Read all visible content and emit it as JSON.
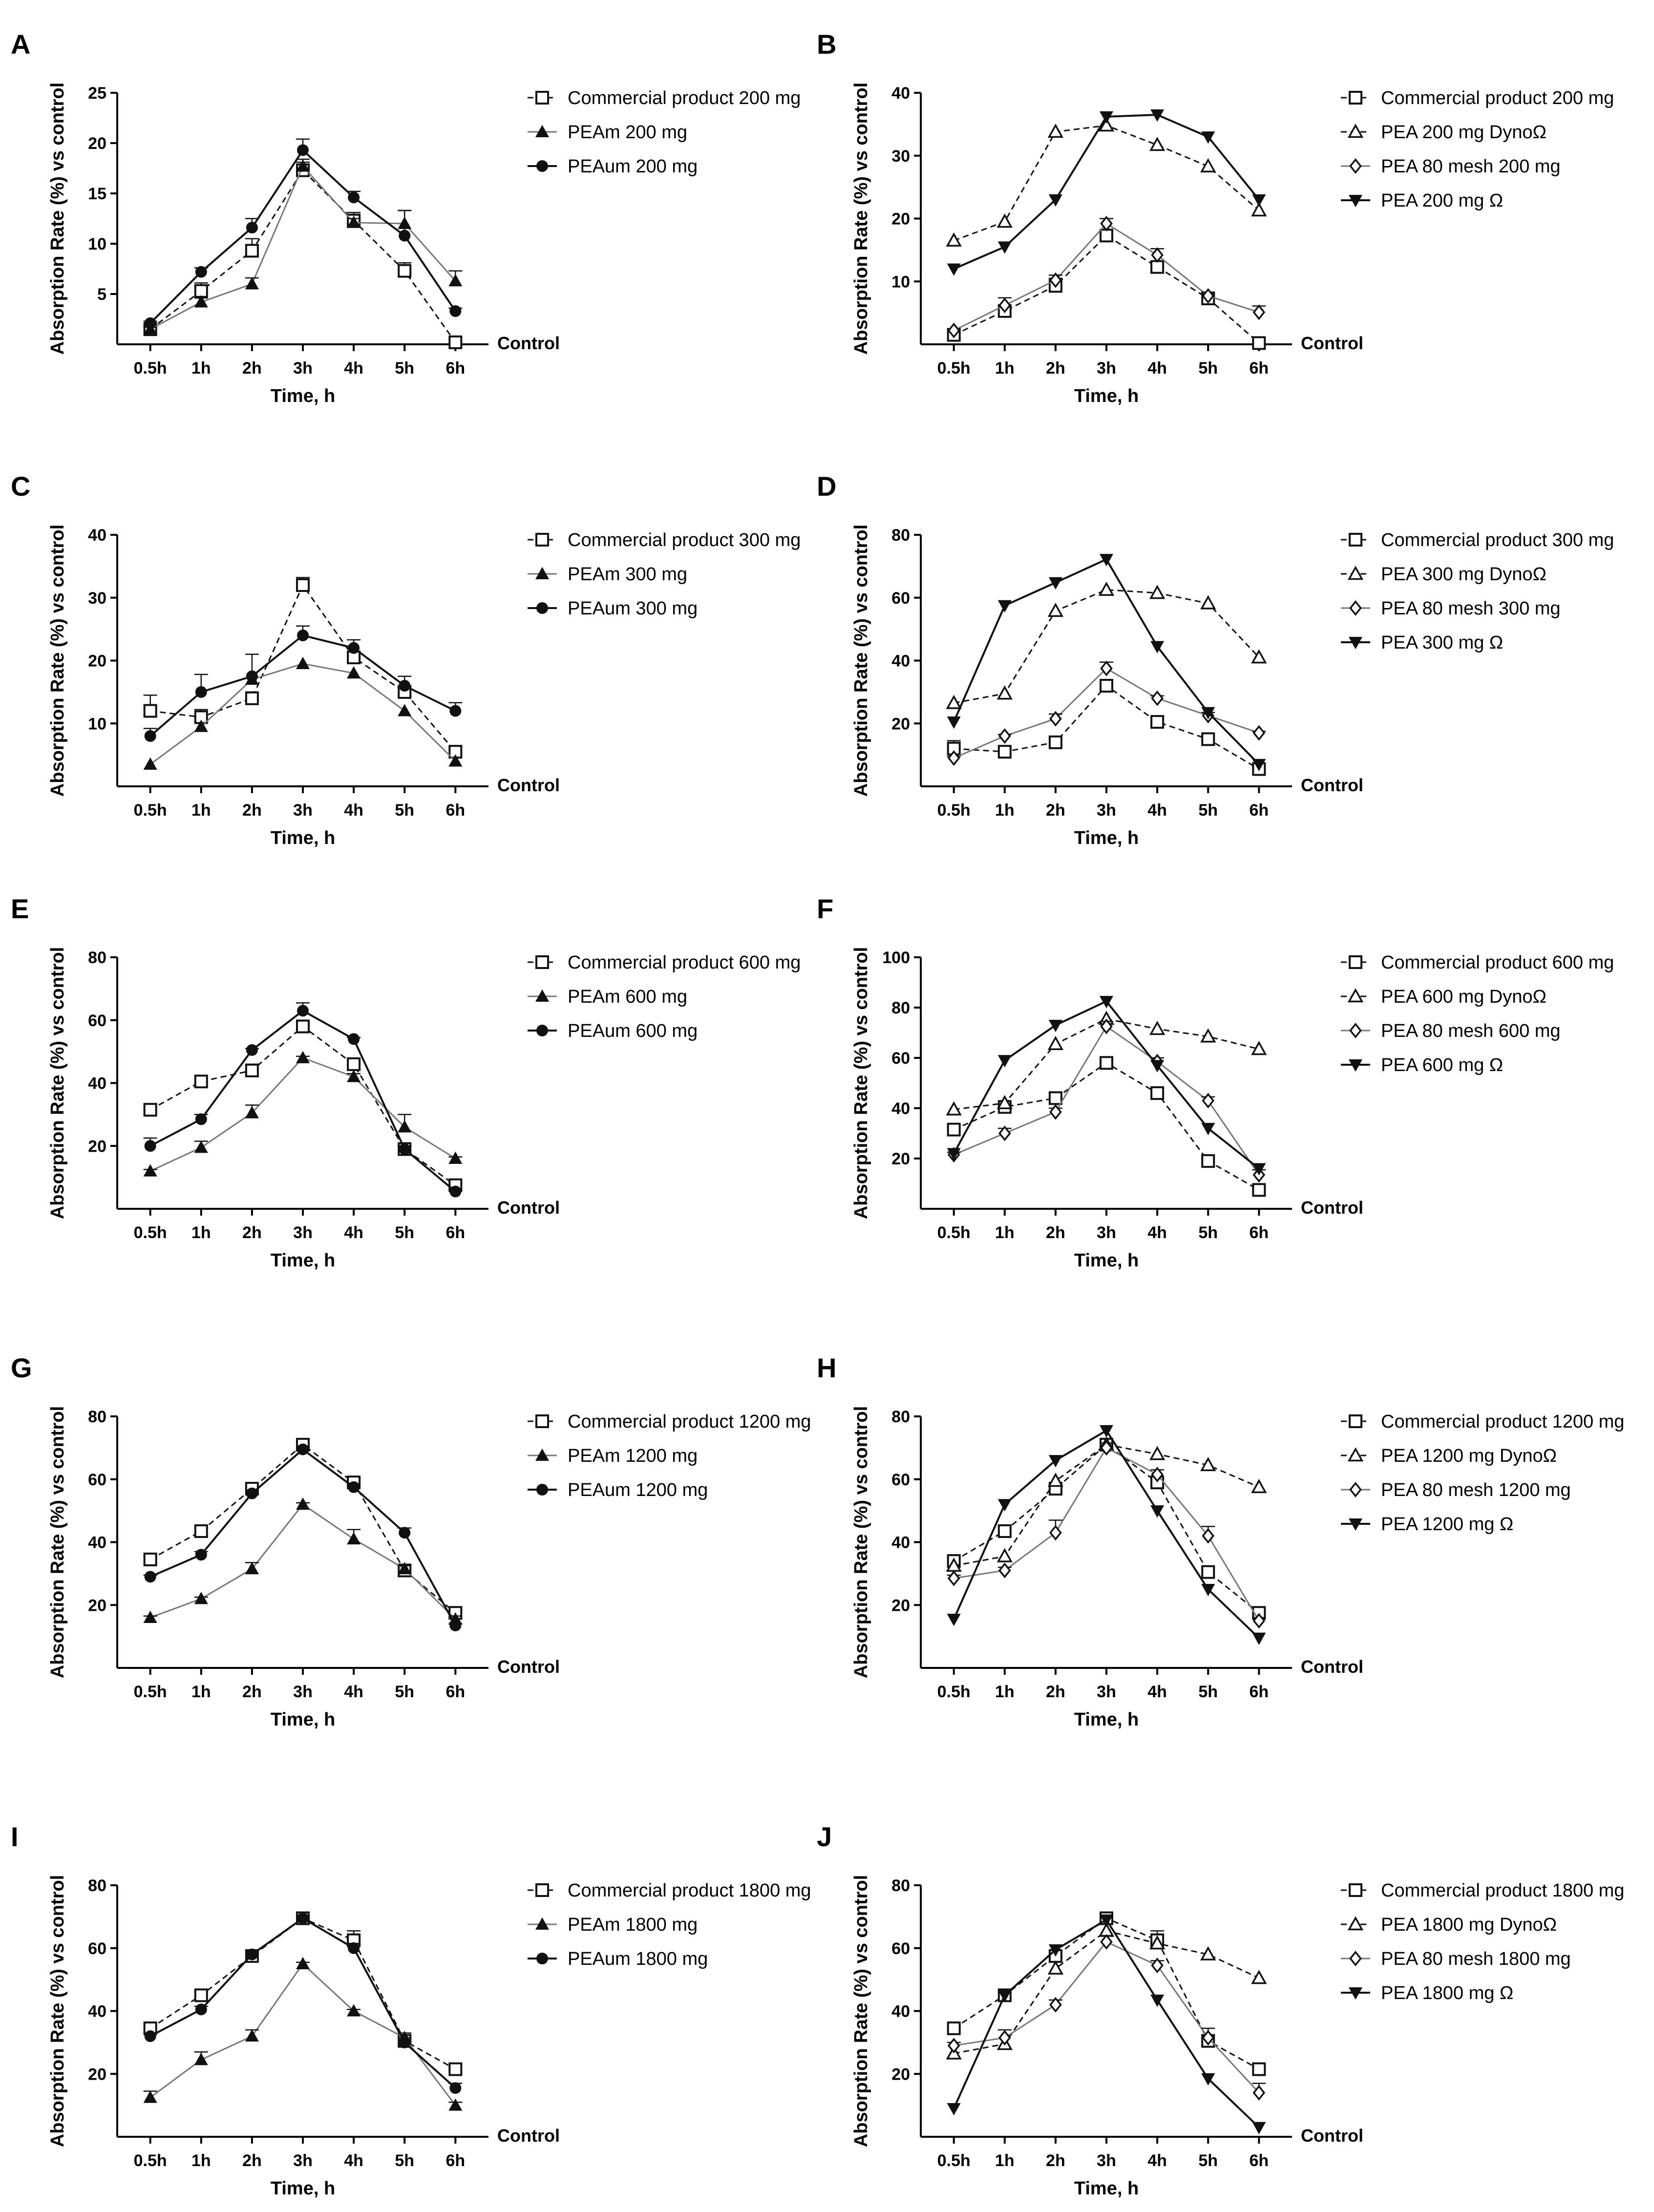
{
  "figure": {
    "control_label": "Control",
    "colors": {
      "axis": "#000000",
      "dark_line": "#111111",
      "gray_line": "#777777",
      "marker_fill": "#ffffff"
    }
  },
  "chart_data": [
    {
      "panel": "A",
      "type": "line",
      "categories": [
        "0.5h",
        "1h",
        "2h",
        "3h",
        "4h",
        "5h",
        "6h"
      ],
      "xlabel": "Time, h",
      "ylabel": "Absorption Rate (%) vs control",
      "ylim": [
        0,
        25
      ],
      "yticks": [
        5,
        10,
        15,
        20,
        25
      ],
      "series": [
        {
          "name": "Commercial product 200 mg",
          "marker": "square-open",
          "line": "dashed-dark",
          "values": [
            1.5,
            5.3,
            9.3,
            17.3,
            12.3,
            7.3,
            0.2
          ],
          "errors": [
            0.3,
            0.8,
            1.2,
            0.8,
            0.8,
            0.8,
            0.3
          ]
        },
        {
          "name": "PEAm 200 mg",
          "marker": "triangle-up-filled",
          "line": "solid-gray",
          "values": [
            1.5,
            4.2,
            6.0,
            17.7,
            12.1,
            12.0,
            6.3
          ],
          "errors": [
            0.2,
            0.4,
            0.6,
            0.7,
            0.4,
            1.3,
            1.0
          ]
        },
        {
          "name": "PEAum 200 mg",
          "marker": "circle-filled",
          "line": "solid-dark",
          "values": [
            2.1,
            7.2,
            11.6,
            19.3,
            14.6,
            10.8,
            3.3
          ],
          "errors": [
            0.2,
            0.4,
            0.9,
            1.1,
            0.6,
            2.5,
            0.3
          ]
        }
      ]
    },
    {
      "panel": "B",
      "type": "line",
      "categories": [
        "0.5h",
        "1h",
        "2h",
        "3h",
        "4h",
        "5h",
        "6h"
      ],
      "xlabel": "Time, h",
      "ylabel": "Absorption Rate (%) vs control",
      "ylim": [
        0,
        40
      ],
      "yticks": [
        10,
        20,
        30,
        40
      ],
      "series": [
        {
          "name": "Commercial product 200 mg",
          "marker": "square-open",
          "line": "dashed-dark",
          "values": [
            1.5,
            5.3,
            9.3,
            17.3,
            12.3,
            7.3,
            0.2
          ],
          "errors": [
            0.3,
            0.8,
            1.2,
            0.8,
            0.8,
            0.8,
            0.3
          ]
        },
        {
          "name": "PEA 200 mg DynoΩ",
          "marker": "triangle-up-open",
          "line": "dashed-dark",
          "values": [
            16.5,
            19.5,
            33.8,
            34.8,
            31.7,
            28.3,
            21.3
          ],
          "errors": [
            0,
            0,
            0,
            0,
            0,
            0,
            0
          ]
        },
        {
          "name": "PEA 80 mesh 200 mg",
          "marker": "diamond-open",
          "line": "solid-gray",
          "values": [
            2.2,
            6.2,
            10.2,
            19.2,
            14.2,
            7.7,
            5.1
          ],
          "errors": [
            0.3,
            1.2,
            0.8,
            0.8,
            1.0,
            0.6,
            1.0
          ]
        },
        {
          "name": "PEA 200 mg Ω",
          "marker": "triangle-down-filled",
          "line": "solid-dark",
          "values": [
            12.0,
            15.5,
            23.0,
            36.2,
            36.5,
            33.0,
            23.0
          ],
          "errors": [
            0,
            0,
            0,
            0,
            0,
            0,
            0
          ]
        }
      ]
    },
    {
      "panel": "C",
      "type": "line",
      "categories": [
        "0.5h",
        "1h",
        "2h",
        "3h",
        "4h",
        "5h",
        "6h"
      ],
      "xlabel": "Time, h",
      "ylabel": "Absorption Rate (%) vs control",
      "ylim": [
        0,
        40
      ],
      "yticks": [
        10,
        20,
        30,
        40
      ],
      "series": [
        {
          "name": "Commercial product 300 mg",
          "marker": "square-open",
          "line": "dashed-dark",
          "values": [
            12.0,
            11.0,
            14.0,
            32.0,
            20.5,
            15.0,
            5.5
          ],
          "errors": [
            2.5,
            1.2,
            1.0,
            1.2,
            0.8,
            1.0,
            0.8
          ]
        },
        {
          "name": "PEAm 300 mg",
          "marker": "triangle-up-filled",
          "line": "solid-gray",
          "values": [
            3.5,
            9.5,
            17.0,
            19.5,
            18.0,
            12.0,
            4.0
          ],
          "errors": [
            0,
            0,
            0,
            0,
            0,
            0,
            0
          ]
        },
        {
          "name": "PEAum 300 mg",
          "marker": "circle-filled",
          "line": "solid-dark",
          "values": [
            8.0,
            15.0,
            17.5,
            24.0,
            22.0,
            16.0,
            12.0
          ],
          "errors": [
            1.2,
            2.8,
            3.5,
            1.5,
            1.3,
            1.5,
            1.3
          ]
        }
      ]
    },
    {
      "panel": "D",
      "type": "line",
      "categories": [
        "0.5h",
        "1h",
        "2h",
        "3h",
        "4h",
        "5h",
        "6h"
      ],
      "xlabel": "Time, h",
      "ylabel": "Absorption Rate (%) vs control",
      "ylim": [
        0,
        80
      ],
      "yticks": [
        20,
        40,
        60,
        80
      ],
      "series": [
        {
          "name": "Commercial product 300 mg",
          "marker": "square-open",
          "line": "dashed-dark",
          "values": [
            12.0,
            11.0,
            14.0,
            32.0,
            20.5,
            15.0,
            5.5
          ],
          "errors": [
            2.5,
            1.2,
            1.0,
            1.2,
            0.8,
            1.0,
            0.8
          ]
        },
        {
          "name": "PEA 300 mg DynoΩ",
          "marker": "triangle-up-open",
          "line": "dashed-dark",
          "values": [
            26.5,
            29.5,
            55.8,
            62.5,
            61.5,
            58.2,
            41.0
          ],
          "errors": [
            0,
            0,
            0,
            0,
            0,
            0,
            0
          ]
        },
        {
          "name": "PEA 80 mesh 300 mg",
          "marker": "diamond-open",
          "line": "solid-gray",
          "values": [
            9.0,
            16.0,
            21.5,
            37.5,
            28.0,
            22.5,
            17.0
          ],
          "errors": [
            0.5,
            0.5,
            1.5,
            2.0,
            0.8,
            1.0,
            0.5
          ]
        },
        {
          "name": "PEA 300 mg Ω",
          "marker": "triangle-down-filled",
          "line": "solid-dark",
          "values": [
            20.5,
            57.5,
            64.8,
            72.2,
            44.5,
            23.5,
            7.0
          ],
          "errors": [
            0,
            0,
            0,
            0,
            0,
            0,
            0
          ]
        }
      ]
    },
    {
      "panel": "E",
      "type": "line",
      "categories": [
        "0.5h",
        "1h",
        "2h",
        "3h",
        "4h",
        "5h",
        "6h"
      ],
      "xlabel": "Time, h",
      "ylabel": "Absorption Rate (%) vs control",
      "ylim": [
        0,
        80
      ],
      "yticks": [
        20,
        40,
        60,
        80
      ],
      "series": [
        {
          "name": "Commercial product 600 mg",
          "marker": "square-open",
          "line": "dashed-dark",
          "values": [
            31.5,
            40.5,
            44.0,
            58.0,
            46.0,
            19.0,
            7.5
          ],
          "errors": [
            1.0,
            1.0,
            2.0,
            2.0,
            1.5,
            1.0,
            0.8
          ]
        },
        {
          "name": "PEAm 600 mg",
          "marker": "triangle-up-filled",
          "line": "solid-gray",
          "values": [
            12.0,
            19.5,
            30.5,
            48.0,
            42.0,
            26.0,
            16.0
          ],
          "errors": [
            0.5,
            2.0,
            2.5,
            0.5,
            1.0,
            4.0,
            0.5
          ]
        },
        {
          "name": "PEAum 600 mg",
          "marker": "circle-filled",
          "line": "solid-dark",
          "values": [
            20.0,
            28.5,
            50.5,
            63.0,
            54.0,
            19.0,
            5.5
          ],
          "errors": [
            2.5,
            1.5,
            0.5,
            2.5,
            0.5,
            1.0,
            0.5
          ]
        }
      ]
    },
    {
      "panel": "F",
      "type": "line",
      "categories": [
        "0.5h",
        "1h",
        "2h",
        "3h",
        "4h",
        "5h",
        "6h"
      ],
      "xlabel": "Time, h",
      "ylabel": "Absorption Rate (%) vs control",
      "ylim": [
        0,
        100
      ],
      "yticks": [
        20,
        40,
        60,
        80,
        100
      ],
      "series": [
        {
          "name": "Commercial product 600 mg",
          "marker": "square-open",
          "line": "dashed-dark",
          "values": [
            31.5,
            40.5,
            44.0,
            58.0,
            46.0,
            19.0,
            7.5
          ],
          "errors": [
            1.0,
            1.0,
            2.0,
            2.0,
            1.5,
            1.0,
            0.8
          ]
        },
        {
          "name": "PEA 600 mg DynoΩ",
          "marker": "triangle-up-open",
          "line": "dashed-dark",
          "values": [
            39.5,
            42.0,
            65.5,
            75.5,
            71.5,
            68.5,
            63.5
          ],
          "errors": [
            0,
            0,
            0,
            0,
            0,
            0,
            0
          ]
        },
        {
          "name": "PEA 80 mesh 600 mg",
          "marker": "diamond-open",
          "line": "solid-gray",
          "values": [
            21.5,
            30.0,
            38.5,
            72.5,
            58.5,
            43.0,
            13.5
          ],
          "errors": [
            1.0,
            2.0,
            1.5,
            2.0,
            1.5,
            1.5,
            2.0
          ]
        },
        {
          "name": "PEA 600 mg Ω",
          "marker": "triangle-down-filled",
          "line": "solid-dark",
          "values": [
            22.0,
            59.0,
            73.0,
            82.5,
            57.0,
            32.0,
            16.0
          ],
          "errors": [
            0,
            0,
            0,
            0,
            0,
            0,
            0
          ]
        }
      ]
    },
    {
      "panel": "G",
      "type": "line",
      "categories": [
        "0.5h",
        "1h",
        "2h",
        "3h",
        "4h",
        "5h",
        "6h"
      ],
      "xlabel": "Time, h",
      "ylabel": "Absorption Rate (%) vs control",
      "ylim": [
        0,
        80
      ],
      "yticks": [
        20,
        40,
        60,
        80
      ],
      "series": [
        {
          "name": "Commercial product 1200 mg",
          "marker": "square-open",
          "line": "dashed-dark",
          "values": [
            34.5,
            43.5,
            57.0,
            71.0,
            59.0,
            31.0,
            17.5
          ],
          "errors": [
            1.0,
            1.0,
            1.0,
            1.0,
            1.0,
            1.5,
            1.0
          ]
        },
        {
          "name": "PEAm 1200 mg",
          "marker": "triangle-up-filled",
          "line": "solid-gray",
          "values": [
            16.0,
            22.0,
            31.5,
            52.0,
            41.0,
            31.5,
            15.5
          ],
          "errors": [
            0.5,
            0.5,
            2.0,
            0.5,
            3.0,
            1.0,
            1.0
          ]
        },
        {
          "name": "PEAum 1200 mg",
          "marker": "circle-filled",
          "line": "solid-dark",
          "values": [
            29.0,
            36.0,
            55.5,
            69.5,
            57.5,
            43.0,
            13.5
          ],
          "errors": [
            0.5,
            1.0,
            1.0,
            1.0,
            1.0,
            1.5,
            0.5
          ]
        }
      ]
    },
    {
      "panel": "H",
      "type": "line",
      "categories": [
        "0.5h",
        "1h",
        "2h",
        "3h",
        "4h",
        "5h",
        "6h"
      ],
      "xlabel": "Time, h",
      "ylabel": "Absorption Rate (%) vs control",
      "ylim": [
        0,
        80
      ],
      "yticks": [
        20,
        40,
        60,
        80
      ],
      "series": [
        {
          "name": "Commercial product 1200 mg",
          "marker": "square-open",
          "line": "dashed-dark",
          "values": [
            34.0,
            43.5,
            57.0,
            71.0,
            59.0,
            30.5,
            17.5
          ],
          "errors": [
            1.0,
            1.0,
            1.0,
            1.0,
            1.0,
            1.5,
            1.0
          ]
        },
        {
          "name": "PEA 1200 mg DynoΩ",
          "marker": "triangle-up-open",
          "line": "dashed-dark",
          "values": [
            32.5,
            35.5,
            59.5,
            71.0,
            68.0,
            64.5,
            57.5
          ],
          "errors": [
            0,
            0,
            0,
            0,
            0,
            0,
            0
          ]
        },
        {
          "name": "PEA 80 mesh 1200 mg",
          "marker": "diamond-open",
          "line": "solid-gray",
          "values": [
            28.5,
            31.0,
            43.0,
            70.0,
            61.5,
            42.0,
            15.0
          ],
          "errors": [
            1.0,
            1.0,
            4.0,
            1.5,
            1.5,
            3.0,
            1.0
          ]
        },
        {
          "name": "PEA 1200 mg Ω",
          "marker": "triangle-down-filled",
          "line": "solid-dark",
          "values": [
            15.5,
            52.0,
            66.0,
            75.5,
            50.0,
            25.0,
            9.5
          ],
          "errors": [
            0,
            0,
            0,
            0,
            0,
            0,
            0
          ]
        }
      ]
    },
    {
      "panel": "I",
      "type": "line",
      "categories": [
        "0.5h",
        "1h",
        "2h",
        "3h",
        "4h",
        "5h",
        "6h"
      ],
      "xlabel": "Time, h",
      "ylabel": "Absorption Rate (%) vs control",
      "ylim": [
        0,
        80
      ],
      "yticks": [
        20,
        40,
        60,
        80
      ],
      "series": [
        {
          "name": "Commercial product 1800 mg",
          "marker": "square-open",
          "line": "dashed-dark",
          "values": [
            34.5,
            45.0,
            57.5,
            69.5,
            62.5,
            30.5,
            21.5
          ],
          "errors": [
            1.0,
            1.0,
            1.0,
            1.0,
            3.0,
            1.5,
            1.0
          ]
        },
        {
          "name": "PEAm 1800 mg",
          "marker": "triangle-up-filled",
          "line": "solid-gray",
          "values": [
            12.5,
            24.5,
            32.0,
            55.0,
            40.0,
            31.5,
            10.0
          ],
          "errors": [
            2.0,
            2.5,
            2.0,
            0.5,
            0.5,
            1.5,
            1.0
          ]
        },
        {
          "name": "PEAum 1800 mg",
          "marker": "circle-filled",
          "line": "solid-dark",
          "values": [
            32.0,
            40.5,
            58.0,
            69.5,
            60.0,
            30.0,
            15.5
          ],
          "errors": [
            1.0,
            1.0,
            1.0,
            1.0,
            1.5,
            1.5,
            1.5
          ]
        }
      ]
    },
    {
      "panel": "J",
      "type": "line",
      "categories": [
        "0.5h",
        "1h",
        "2h",
        "3h",
        "4h",
        "5h",
        "6h"
      ],
      "xlabel": "Time, h",
      "ylabel": "Absorption Rate (%) vs control",
      "ylim": [
        0,
        80
      ],
      "yticks": [
        20,
        40,
        60,
        80
      ],
      "series": [
        {
          "name": "Commercial product 1800 mg",
          "marker": "square-open",
          "line": "dashed-dark",
          "values": [
            34.5,
            45.0,
            57.5,
            69.5,
            62.5,
            30.5,
            21.5
          ],
          "errors": [
            1.0,
            1.0,
            1.0,
            1.0,
            3.0,
            1.5,
            1.0
          ]
        },
        {
          "name": "PEA 1800 mg DynoΩ",
          "marker": "triangle-up-open",
          "line": "dashed-dark",
          "values": [
            26.5,
            29.5,
            53.5,
            65.5,
            61.5,
            58.0,
            50.5
          ],
          "errors": [
            0,
            0,
            0,
            0,
            0,
            0,
            0
          ]
        },
        {
          "name": "PEA 80 mesh 1800 mg",
          "marker": "diamond-open",
          "line": "solid-gray",
          "values": [
            29.0,
            31.5,
            42.0,
            62.0,
            54.5,
            31.5,
            14.0
          ],
          "errors": [
            1.0,
            2.5,
            1.5,
            2.0,
            1.5,
            3.0,
            3.0
          ]
        },
        {
          "name": "PEA 1800 mg Ω",
          "marker": "triangle-down-filled",
          "line": "solid-dark",
          "values": [
            9.0,
            45.0,
            59.5,
            69.0,
            43.5,
            18.5,
            3.0
          ],
          "errors": [
            0,
            0,
            0,
            0,
            0,
            0,
            0
          ]
        }
      ]
    }
  ]
}
